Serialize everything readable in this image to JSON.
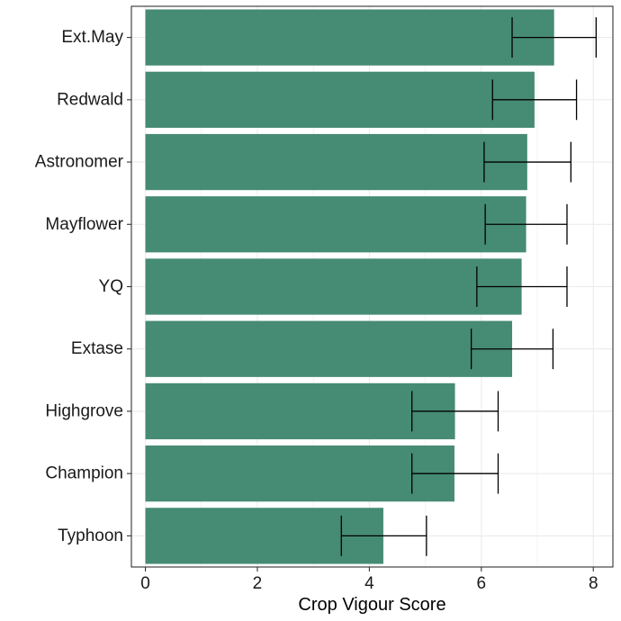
{
  "chart_data": {
    "type": "bar",
    "orientation": "horizontal",
    "title": "",
    "xlabel": "Crop Vigour Score",
    "ylabel": "",
    "xlim": [
      -0.25,
      8.35
    ],
    "x_ticks": [
      0,
      2,
      4,
      6,
      8
    ],
    "grid": true,
    "categories": [
      "Ext.May",
      "Redwald",
      "Astronomer",
      "Mayflower",
      "YQ",
      "Extase",
      "Highgrove",
      "Champion",
      "Typhoon"
    ],
    "values": [
      7.3,
      6.95,
      6.82,
      6.8,
      6.72,
      6.55,
      5.53,
      5.52,
      4.25
    ],
    "error_low": [
      6.55,
      6.2,
      6.05,
      6.07,
      5.92,
      5.82,
      4.76,
      4.76,
      3.5
    ],
    "error_high": [
      8.05,
      7.7,
      7.6,
      7.53,
      7.53,
      7.28,
      6.3,
      6.3,
      5.02
    ],
    "colors": {
      "bar": "#468b74",
      "error_bar": "#000000",
      "grid": "#ebebeb",
      "panel_border": "#333333"
    }
  }
}
